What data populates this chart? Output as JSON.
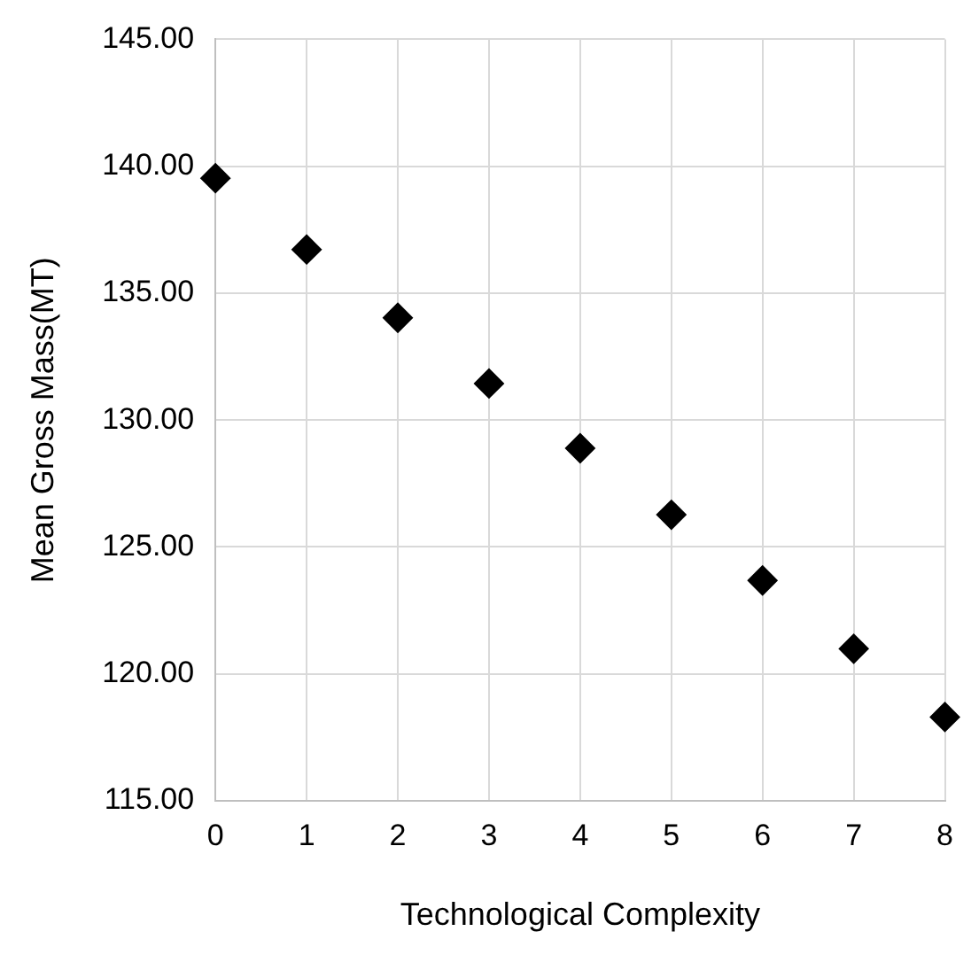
{
  "chart_data": {
    "type": "scatter",
    "xlabel": "Technological Complexity",
    "ylabel": "Mean Gross Mass(MT)",
    "x": [
      0,
      1,
      2,
      3,
      4,
      5,
      6,
      7,
      8
    ],
    "series": [
      {
        "color": "#000000",
        "values": [
          139.53,
          136.72,
          134.03,
          131.44,
          128.89,
          126.27,
          123.68,
          120.99,
          118.3
        ]
      }
    ],
    "xlim": [
      0,
      8
    ],
    "xticks": [
      0,
      1,
      2,
      3,
      4,
      5,
      6,
      7,
      8
    ],
    "ylim": [
      115,
      145
    ],
    "yticks": [
      {
        "value": 115,
        "label": "115.00"
      },
      {
        "value": 120,
        "label": "120.00"
      },
      {
        "value": 125,
        "label": "125.00"
      },
      {
        "value": 130,
        "label": "130.00"
      },
      {
        "value": 135,
        "label": "135.00"
      },
      {
        "value": 140,
        "label": "140.00"
      },
      {
        "value": 145,
        "label": "145.00"
      }
    ],
    "grid": true,
    "marker": "diamond",
    "legend": false
  }
}
